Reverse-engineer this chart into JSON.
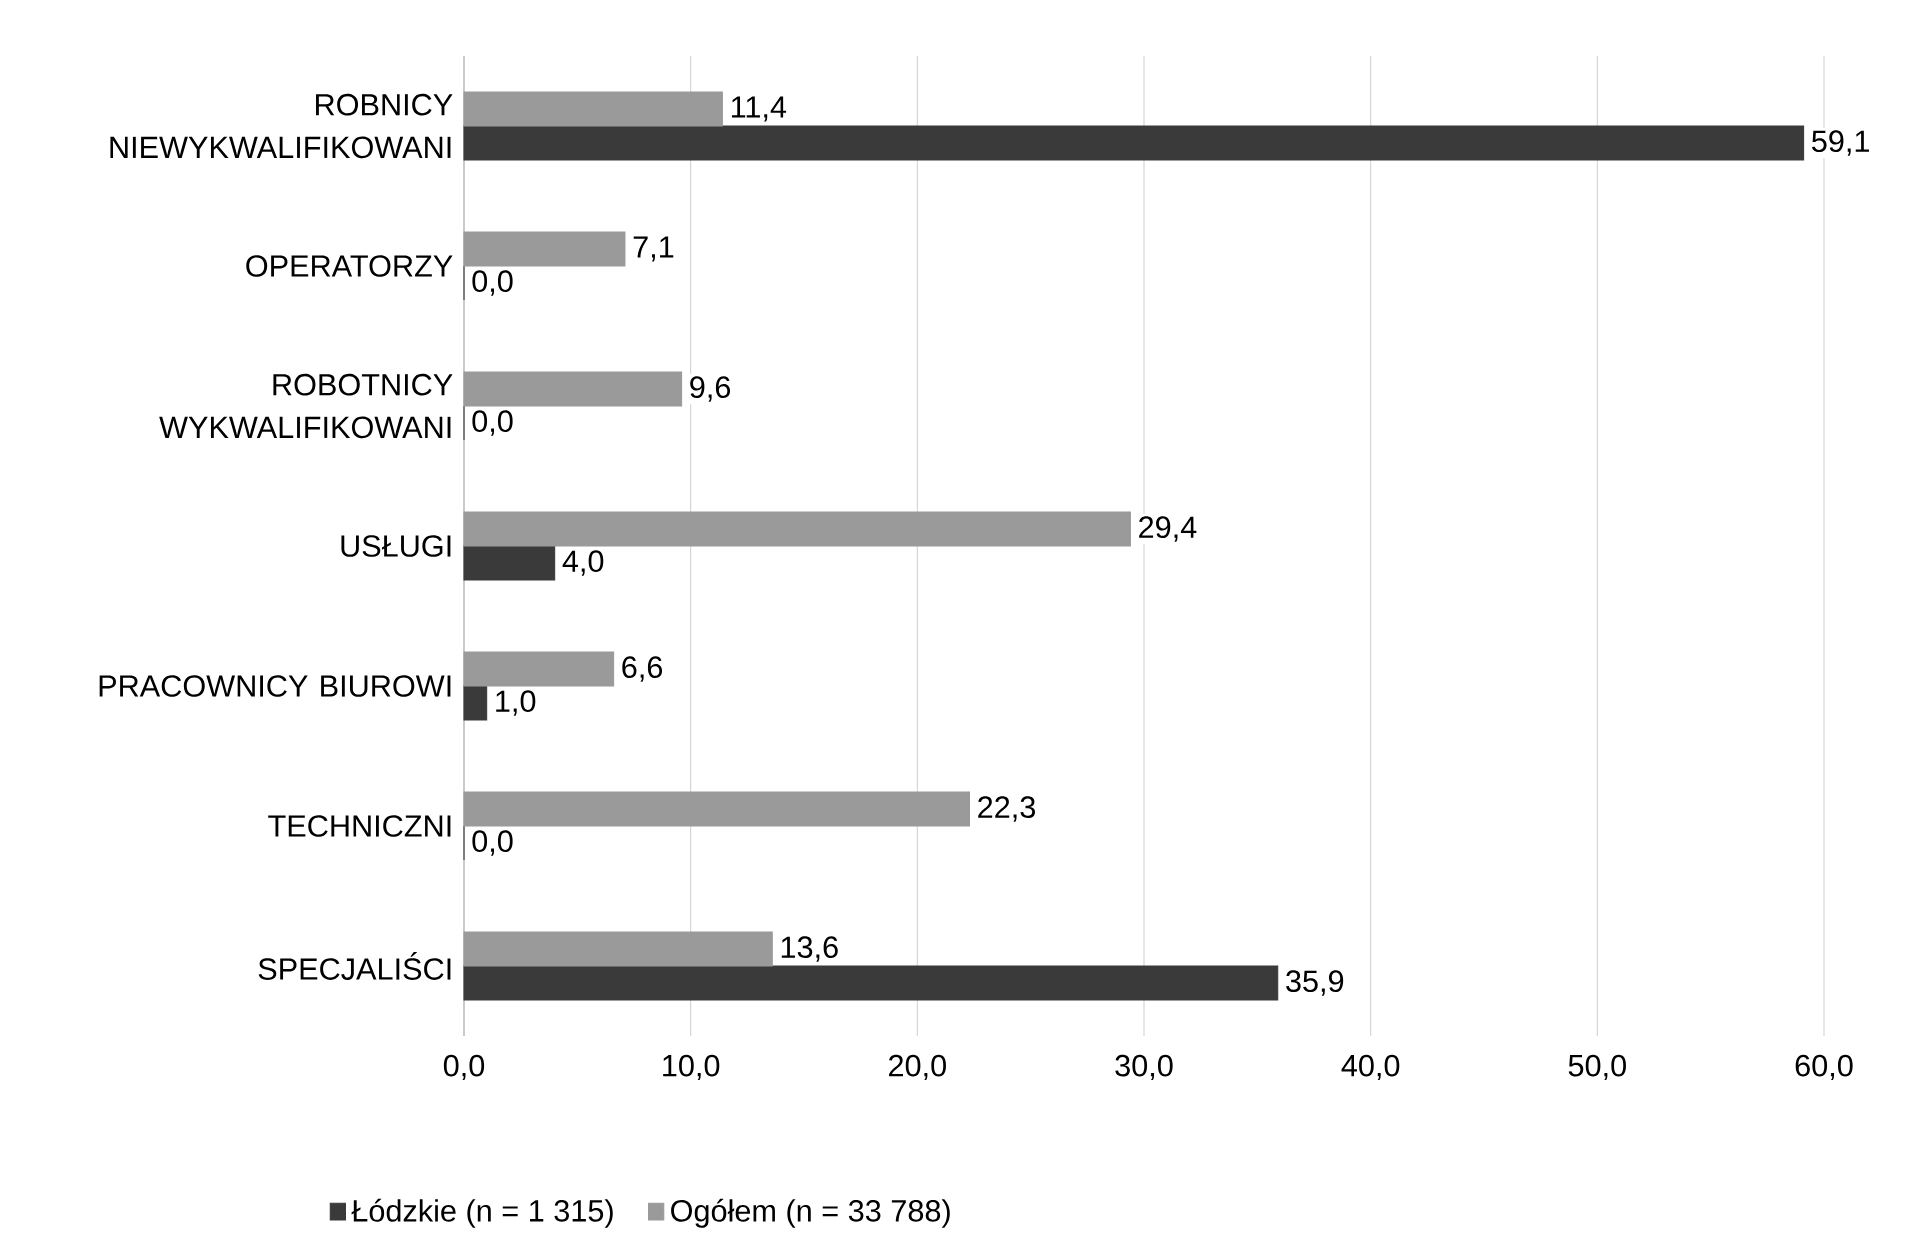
{
  "chart_data": {
    "type": "bar",
    "orientation": "horizontal",
    "categories": [
      "ROBNICY NIEWYKWALIFIKOWANI",
      "OPERATORZY",
      "ROBOTNICY WYKWALIFIKOWANI",
      "USŁUGI",
      "PRACOWNICY BIUROWI",
      "TECHNICZNI",
      "SPECJALIŚCI"
    ],
    "series": [
      {
        "name": "Łódzkie (n = 1 315)",
        "color": "#3a3a3a",
        "values": [
          59.1,
          0.0,
          0.0,
          4.0,
          1.0,
          0.0,
          35.9
        ],
        "value_labels": [
          "59,1",
          "0,0",
          "0,0",
          "4,0",
          "1,0",
          "0,0",
          "35,9"
        ]
      },
      {
        "name": "Ogółem (n = 33 788)",
        "color": "#9a9a9a",
        "values": [
          11.4,
          7.1,
          9.6,
          29.4,
          6.6,
          22.3,
          13.6
        ],
        "value_labels": [
          "11,4",
          "7,1",
          "9,6",
          "29,4",
          "6,6",
          "22,3",
          "13,6"
        ]
      }
    ],
    "xlim": [
      0,
      60
    ],
    "xticks": [
      {
        "value": 0,
        "label": "0,0"
      },
      {
        "value": 10,
        "label": "10,0"
      },
      {
        "value": 20,
        "label": "20,0"
      },
      {
        "value": 30,
        "label": "30,0"
      },
      {
        "value": 40,
        "label": "40,0"
      },
      {
        "value": 50,
        "label": "50,0"
      },
      {
        "value": 60,
        "label": "60,0"
      }
    ],
    "grid": "x",
    "legend": "bottom left"
  }
}
